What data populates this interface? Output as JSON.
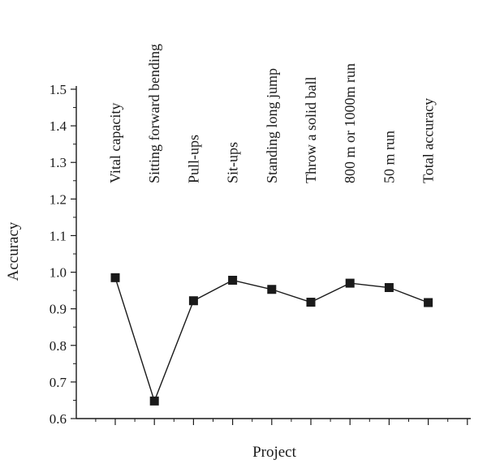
{
  "chart_data": {
    "type": "line",
    "categories": [
      "Vital capacity",
      "Sitting forward bending",
      "Pull-ups",
      "Sit-ups",
      "Standing long jump",
      "Throw a solid ball",
      "800 m or 1000m run",
      "50 m run",
      "Total accuracy"
    ],
    "values": [
      0.985,
      0.648,
      0.922,
      0.978,
      0.953,
      0.918,
      0.97,
      0.958,
      0.917
    ],
    "title": "",
    "xlabel": "Project",
    "ylabel": "Accuracy",
    "ylim": [
      0.6,
      1.5
    ],
    "yticks": [
      "0.6",
      "0.7",
      "0.8",
      "0.9",
      "1.0",
      "1.1",
      "1.2",
      "1.3",
      "1.4",
      "1.5"
    ],
    "grid": false,
    "legend": "none",
    "marker": "square",
    "line_color": "#1a1a1a",
    "marker_color": "#1a1a1a"
  }
}
